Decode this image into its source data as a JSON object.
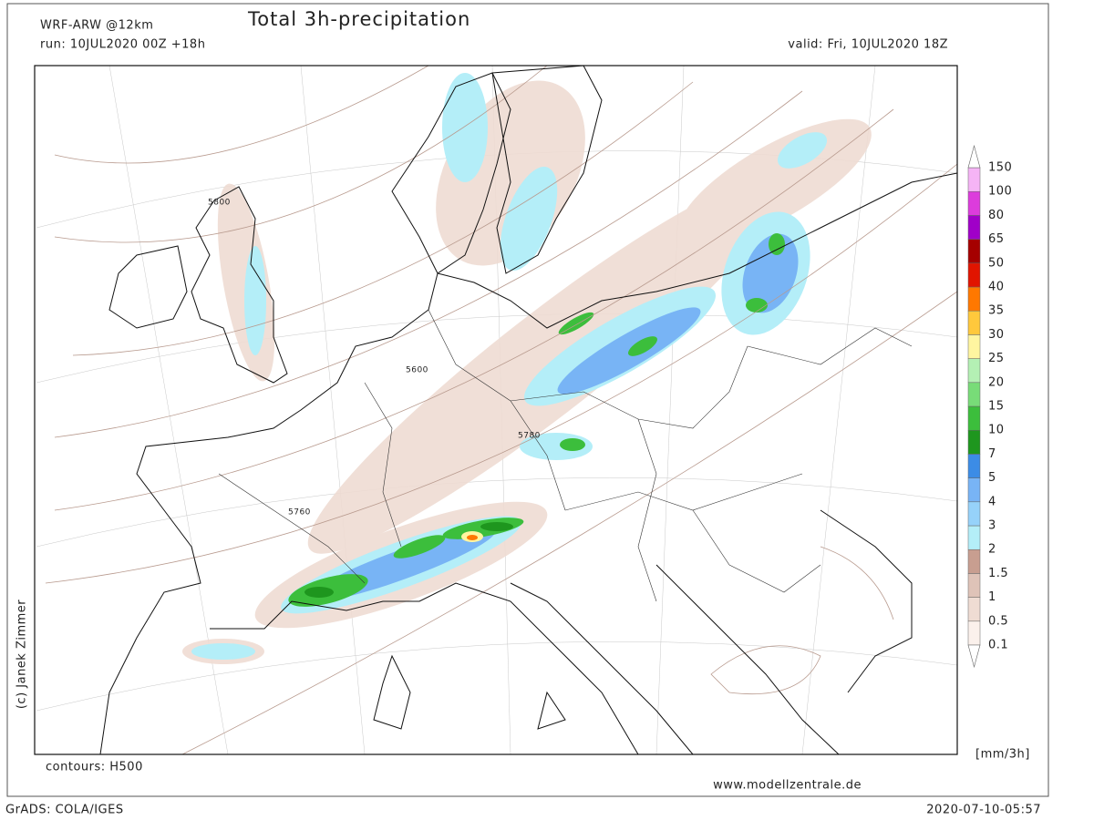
{
  "header": {
    "model": "WRF-ARW @12km",
    "title": "Total 3h-precipitation",
    "run": "run: 10JUL2020 00Z +18h",
    "valid": "valid: Fri, 10JUL2020 18Z"
  },
  "map": {
    "credit": "(c) Janek Zimmer",
    "contours": "contours: H500",
    "website": "www.modellzentrale.de",
    "contour_labels": [
      "5800",
      "5600",
      "5780",
      "5760"
    ]
  },
  "legend": {
    "unit": "[mm/3h]",
    "levels": [
      0.1,
      0.5,
      1,
      1.5,
      2,
      3,
      4,
      5,
      7,
      10,
      15,
      20,
      25,
      30,
      35,
      40,
      50,
      65,
      80,
      100,
      150
    ],
    "colors": [
      "#fbf1ec",
      "#efdcd3",
      "#dfc3b8",
      "#c89e90",
      "#b4eef8",
      "#96d2fa",
      "#78b4f5",
      "#3c8ce6",
      "#1e961e",
      "#3cbe3c",
      "#78dc78",
      "#b4f0b4",
      "#fff5a0",
      "#ffc83c",
      "#ff7800",
      "#e11400",
      "#a50000",
      "#a000c8",
      "#dc3cdc",
      "#f5b4f5"
    ]
  },
  "footer": {
    "left": "GrADS: COLA/IGES",
    "right": "2020-07-10-05:57"
  }
}
